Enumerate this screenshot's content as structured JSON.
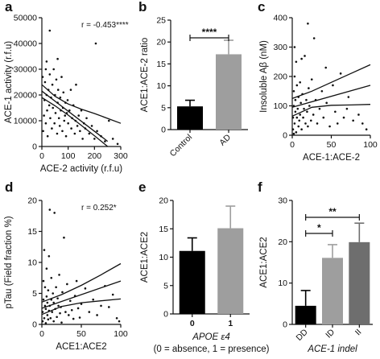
{
  "chart_data": [
    {
      "panel": "a",
      "type": "scatter",
      "xlabel": "ACE-2 activity (r.f.u)",
      "ylabel": "ACE-1 activity (r.f.u)",
      "xlim": [
        0,
        300
      ],
      "ylim": [
        0,
        50000
      ],
      "xticks": [
        "0",
        "100",
        "200",
        "300"
      ],
      "yticks": [
        "0",
        "10000",
        "20000",
        "30000",
        "40000",
        "50000"
      ],
      "annotation": "r = -0.453****",
      "points": [
        [
          5,
          6000
        ],
        [
          8,
          12000
        ],
        [
          10,
          18000
        ],
        [
          12,
          25000
        ],
        [
          15,
          30000
        ],
        [
          15,
          9000
        ],
        [
          18,
          20000
        ],
        [
          20,
          14000
        ],
        [
          22,
          4000
        ],
        [
          25,
          22000
        ],
        [
          28,
          16000
        ],
        [
          30,
          45000
        ],
        [
          30,
          28000
        ],
        [
          32,
          11000
        ],
        [
          35,
          19000
        ],
        [
          38,
          7000
        ],
        [
          40,
          24000
        ],
        [
          42,
          15000
        ],
        [
          45,
          30000
        ],
        [
          48,
          9000
        ],
        [
          50,
          20000
        ],
        [
          52,
          13000
        ],
        [
          55,
          26000
        ],
        [
          58,
          5000
        ],
        [
          60,
          17000
        ],
        [
          62,
          22000
        ],
        [
          65,
          11000
        ],
        [
          68,
          8000
        ],
        [
          70,
          19000
        ],
        [
          72,
          14000
        ],
        [
          75,
          27000
        ],
        [
          78,
          6000
        ],
        [
          80,
          15000
        ],
        [
          82,
          21000
        ],
        [
          85,
          10000
        ],
        [
          88,
          12000
        ],
        [
          90,
          17000
        ],
        [
          92,
          4000
        ],
        [
          95,
          13000
        ],
        [
          98,
          18000
        ],
        [
          100,
          9000
        ],
        [
          105,
          14000
        ],
        [
          110,
          22000
        ],
        [
          112,
          7000
        ],
        [
          115,
          11000
        ],
        [
          120,
          16000
        ],
        [
          125,
          5000
        ],
        [
          128,
          10000
        ],
        [
          130,
          24000
        ],
        [
          135,
          8000
        ],
        [
          140,
          12000
        ],
        [
          145,
          6000
        ],
        [
          150,
          14000
        ],
        [
          155,
          3000
        ],
        [
          160,
          9000
        ],
        [
          165,
          7000
        ],
        [
          170,
          11000
        ],
        [
          180,
          5000
        ],
        [
          190,
          8000
        ],
        [
          200,
          3000
        ],
        [
          210,
          6000
        ],
        [
          225,
          4000
        ],
        [
          240,
          2000
        ],
        [
          255,
          10000
        ],
        [
          270,
          3000
        ],
        [
          288,
          1000
        ],
        [
          205,
          40000
        ],
        [
          60,
          34000
        ],
        [
          18,
          33000
        ],
        [
          3,
          27000
        ]
      ],
      "fit": {
        "x": [
          0,
          250
        ],
        "y": [
          21500,
          2000
        ]
      },
      "ci_upper": {
        "x": [
          0,
          50,
          100,
          150,
          200,
          300
        ],
        "y": [
          24000,
          19500,
          16500,
          14500,
          12800,
          9000
        ]
      },
      "ci_lower": {
        "x": [
          0,
          50,
          100,
          150,
          200,
          250
        ],
        "y": [
          19000,
          15800,
          12200,
          8200,
          4200,
          0
        ]
      }
    },
    {
      "panel": "b",
      "type": "bar",
      "ylabel": "ACE1:ACE-2 ratio",
      "categories": [
        "Control",
        "AD"
      ],
      "values": [
        5.3,
        17.2
      ],
      "errors": [
        1.4,
        3.2
      ],
      "colors": [
        "#000000",
        "#9e9e9e"
      ],
      "ylim": [
        0,
        25
      ],
      "yticks": [
        "0",
        "5",
        "10",
        "15",
        "20",
        "25"
      ],
      "significance": [
        {
          "between": [
            "Control",
            "AD"
          ],
          "label": "****"
        }
      ]
    },
    {
      "panel": "c",
      "type": "scatter",
      "xlabel": "ACE-1:ACE-2",
      "ylabel": "Insoluble Aβ (nM)",
      "xlim": [
        0,
        100
      ],
      "ylim": [
        0,
        400
      ],
      "xticks": [
        "0",
        "50",
        "100"
      ],
      "yticks": [
        "0",
        "100",
        "200",
        "300",
        "400"
      ],
      "points": [
        [
          1,
          20
        ],
        [
          1,
          60
        ],
        [
          2,
          100
        ],
        [
          2,
          150
        ],
        [
          3,
          40
        ],
        [
          3,
          200
        ],
        [
          4,
          80
        ],
        [
          4,
          120
        ],
        [
          5,
          10
        ],
        [
          5,
          250
        ],
        [
          6,
          60
        ],
        [
          6,
          170
        ],
        [
          7,
          90
        ],
        [
          8,
          30
        ],
        [
          8,
          130
        ],
        [
          9,
          50
        ],
        [
          10,
          180
        ],
        [
          10,
          70
        ],
        [
          11,
          110
        ],
        [
          12,
          20
        ],
        [
          13,
          140
        ],
        [
          14,
          60
        ],
        [
          15,
          90
        ],
        [
          16,
          270
        ],
        [
          17,
          40
        ],
        [
          18,
          120
        ],
        [
          19,
          80
        ],
        [
          20,
          30
        ],
        [
          21,
          160
        ],
        [
          22,
          100
        ],
        [
          24,
          50
        ],
        [
          25,
          190
        ],
        [
          27,
          70
        ],
        [
          28,
          330
        ],
        [
          30,
          120
        ],
        [
          32,
          40
        ],
        [
          35,
          90
        ],
        [
          38,
          150
        ],
        [
          40,
          60
        ],
        [
          44,
          110
        ],
        [
          48,
          30
        ],
        [
          52,
          170
        ],
        [
          55,
          80
        ],
        [
          58,
          40
        ],
        [
          62,
          210
        ],
        [
          66,
          60
        ],
        [
          70,
          90
        ],
        [
          72,
          130
        ],
        [
          78,
          50
        ],
        [
          85,
          70
        ],
        [
          90,
          40
        ],
        [
          95,
          20
        ],
        [
          20,
          380
        ],
        [
          3,
          300
        ],
        [
          2,
          5
        ],
        [
          12,
          260
        ],
        [
          43,
          230
        ]
      ],
      "fit": {
        "x": [
          0,
          100
        ],
        "y": [
          95,
          170
        ]
      },
      "ci_upper": {
        "x": [
          0,
          25,
          50,
          75,
          100
        ],
        "y": [
          125,
          150,
          180,
          210,
          240
        ]
      },
      "ci_lower": {
        "x": [
          0,
          25,
          50,
          75,
          100
        ],
        "y": [
          65,
          95,
          102,
          103,
          105
        ]
      }
    },
    {
      "panel": "d",
      "type": "scatter",
      "xlabel": "ACE1:ACE2",
      "ylabel": "pTau (Field fraction %)",
      "xlim": [
        0,
        100
      ],
      "ylim": [
        0,
        20
      ],
      "xticks": [
        "0",
        "50",
        "100"
      ],
      "yticks": [
        "0",
        "5",
        "10",
        "15",
        "20"
      ],
      "annotation": "r = 0.252*",
      "points": [
        [
          1,
          0.5
        ],
        [
          1,
          2
        ],
        [
          2,
          4
        ],
        [
          2,
          7
        ],
        [
          3,
          1
        ],
        [
          3,
          12
        ],
        [
          4,
          3
        ],
        [
          4,
          6
        ],
        [
          5,
          0.2
        ],
        [
          5,
          2.5
        ],
        [
          6,
          9
        ],
        [
          6,
          4.5
        ],
        [
          7,
          1.5
        ],
        [
          7,
          3.5
        ],
        [
          8,
          5.5
        ],
        [
          8,
          0.8
        ],
        [
          9,
          2.2
        ],
        [
          9,
          11
        ],
        [
          10,
          3
        ],
        [
          10,
          18.5
        ],
        [
          11,
          1
        ],
        [
          12,
          4
        ],
        [
          12,
          7.5
        ],
        [
          13,
          2
        ],
        [
          14,
          5
        ],
        [
          15,
          0.5
        ],
        [
          15,
          3.5
        ],
        [
          16,
          18
        ],
        [
          17,
          2.5
        ],
        [
          18,
          6
        ],
        [
          19,
          1.2
        ],
        [
          20,
          4.2
        ],
        [
          21,
          3
        ],
        [
          22,
          8
        ],
        [
          23,
          1.8
        ],
        [
          24,
          2.8
        ],
        [
          25,
          0.3
        ],
        [
          26,
          5.2
        ],
        [
          28,
          14
        ],
        [
          30,
          2
        ],
        [
          32,
          6.5
        ],
        [
          34,
          1.5
        ],
        [
          36,
          3.8
        ],
        [
          38,
          2.3
        ],
        [
          40,
          0.9
        ],
        [
          42,
          4.6
        ],
        [
          44,
          7
        ],
        [
          46,
          2.6
        ],
        [
          48,
          1.1
        ],
        [
          50,
          3.3
        ],
        [
          55,
          5.8
        ],
        [
          60,
          2
        ],
        [
          65,
          4
        ],
        [
          70,
          1.5
        ],
        [
          75,
          3
        ],
        [
          80,
          6.2
        ],
        [
          85,
          2.8
        ],
        [
          90,
          4.8
        ],
        [
          95,
          1
        ],
        [
          98,
          0.5
        ]
      ],
      "fit": {
        "x": [
          0,
          100
        ],
        "y": [
          2.6,
          7.0
        ]
      },
      "ci_upper": {
        "x": [
          0,
          25,
          50,
          75,
          100
        ],
        "y": [
          3.6,
          4.8,
          6.3,
          8.0,
          9.8
        ]
      },
      "ci_lower": {
        "x": [
          0,
          25,
          50,
          75,
          100
        ],
        "y": [
          1.6,
          2.9,
          3.5,
          3.8,
          4.1
        ]
      }
    },
    {
      "panel": "e",
      "type": "bar",
      "ylabel": "ACE1:ACE2",
      "xlabel": "APOE ε4",
      "xlabel2": "(0 = absence, 1 = presence)",
      "categories": [
        "0",
        "1"
      ],
      "values": [
        11.1,
        15.1
      ],
      "errors": [
        2.3,
        3.9
      ],
      "colors": [
        "#000000",
        "#9e9e9e"
      ],
      "ylim": [
        0,
        20
      ],
      "yticks": [
        "0",
        "5",
        "10",
        "15",
        "20"
      ]
    },
    {
      "panel": "f",
      "type": "bar",
      "ylabel": "ACE1:ACE2",
      "xlabel": "ACE-1 indel",
      "categories": [
        "DD",
        "ID",
        "II"
      ],
      "values": [
        4.5,
        16.1,
        19.9
      ],
      "errors": [
        3.7,
        3.2,
        4.6
      ],
      "colors": [
        "#000000",
        "#9e9e9e",
        "#6e6e6e"
      ],
      "ylim": [
        0,
        30
      ],
      "yticks": [
        "0",
        "10",
        "20",
        "30"
      ],
      "significance": [
        {
          "between": [
            "DD",
            "ID"
          ],
          "label": "*"
        },
        {
          "between": [
            "DD",
            "II"
          ],
          "label": "**"
        }
      ]
    }
  ]
}
